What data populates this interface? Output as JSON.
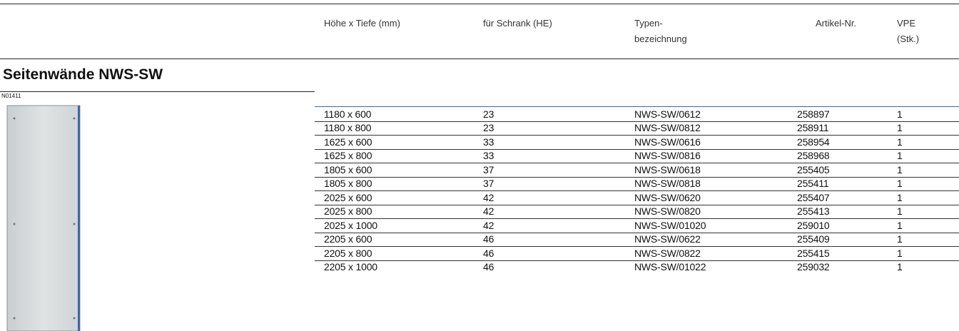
{
  "header": {
    "columns": [
      "Höhe x Tiefe (mm)",
      "für Schrank (HE)",
      "Typen-\nbezeichnung",
      "Artikel-Nr.",
      "VPE\n(Stk.)"
    ]
  },
  "section": {
    "title": "Seitenwände NWS-SW",
    "image_code": "N01411"
  },
  "table": {
    "rows": [
      [
        "1180 x 600",
        "23",
        "NWS-SW/0612",
        "258897",
        "1"
      ],
      [
        "1180 x 800",
        "23",
        "NWS-SW/0812",
        "258911",
        "1"
      ],
      [
        "1625 x 600",
        "33",
        "NWS-SW/0616",
        "258954",
        "1"
      ],
      [
        "1625 x 800",
        "33",
        "NWS-SW/0816",
        "258968",
        "1"
      ],
      [
        "1805 x 600",
        "37",
        "NWS-SW/0618",
        "255405",
        "1"
      ],
      [
        "1805 x 800",
        "37",
        "NWS-SW/0818",
        "255411",
        "1"
      ],
      [
        "2025 x 600",
        "42",
        "NWS-SW/0620",
        "255407",
        "1"
      ],
      [
        "2025 x 800",
        "42",
        "NWS-SW/0820",
        "255413",
        "1"
      ],
      [
        "2025 x 1000",
        "42",
        "NWS-SW/01020",
        "259010",
        "1"
      ],
      [
        "2205 x 600",
        "46",
        "NWS-SW/0622",
        "255409",
        "1"
      ],
      [
        "2205 x 800",
        "46",
        "NWS-SW/0822",
        "255415",
        "1"
      ],
      [
        "2205 x 1000",
        "46",
        "NWS-SW/01022",
        "259032",
        "1"
      ]
    ]
  }
}
